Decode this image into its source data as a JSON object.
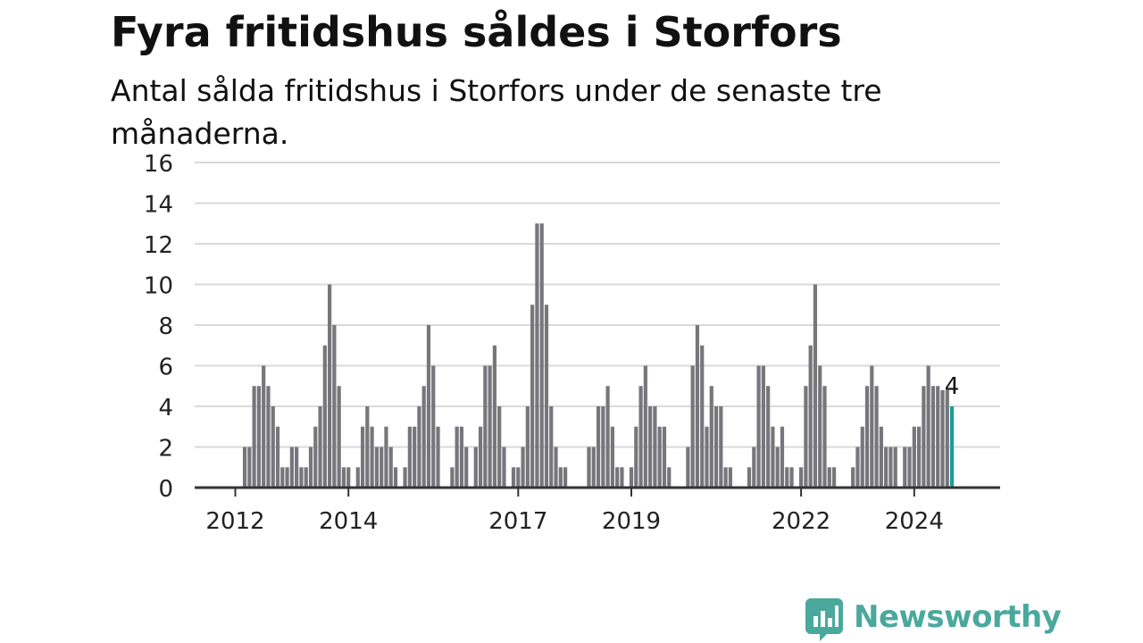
{
  "title": "Fyra fritidshus såldes i Storfors",
  "subtitle": "Antal sålda fritidshus i Storfors under de senaste tre månaderna.",
  "brand": {
    "name": "Newsworthy",
    "color": "#4ba89d",
    "icon": "newsworthy-logo-icon"
  },
  "chart_data": {
    "type": "bar",
    "grid": true,
    "ylim": [
      0,
      16
    ],
    "yticks": [
      0,
      2,
      4,
      6,
      8,
      10,
      12,
      14,
      16
    ],
    "xticks": [
      {
        "label": "2012",
        "index": 0
      },
      {
        "label": "2014",
        "index": 24
      },
      {
        "label": "2017",
        "index": 60
      },
      {
        "label": "2019",
        "index": 84
      },
      {
        "label": "2022",
        "index": 120
      },
      {
        "label": "2024",
        "index": 144
      }
    ],
    "bar_color": "#76767c",
    "highlight_color": "#1b9d9a",
    "highlight_label": "4",
    "values": [
      null,
      null,
      2,
      2,
      5,
      5,
      6,
      5,
      4,
      3,
      1,
      1,
      2,
      2,
      1,
      1,
      2,
      3,
      4,
      7,
      10,
      8,
      5,
      1,
      1,
      null,
      1,
      3,
      4,
      3,
      2,
      2,
      3,
      2,
      1,
      null,
      1,
      3,
      3,
      4,
      5,
      8,
      6,
      3,
      null,
      null,
      1,
      3,
      3,
      2,
      null,
      2,
      3,
      6,
      6,
      7,
      4,
      2,
      null,
      1,
      1,
      2,
      4,
      9,
      13,
      13,
      9,
      4,
      2,
      1,
      1,
      null,
      null,
      null,
      null,
      2,
      2,
      4,
      4,
      5,
      3,
      1,
      1,
      null,
      1,
      3,
      5,
      6,
      4,
      4,
      3,
      3,
      1,
      null,
      null,
      null,
      2,
      6,
      8,
      7,
      3,
      5,
      4,
      4,
      1,
      1,
      null,
      null,
      null,
      1,
      2,
      6,
      6,
      5,
      3,
      2,
      3,
      1,
      1,
      null,
      1,
      5,
      7,
      10,
      6,
      5,
      1,
      1,
      null,
      null,
      null,
      1,
      2,
      3,
      5,
      6,
      5,
      3,
      2,
      2,
      2,
      null,
      2,
      2,
      3,
      3,
      5,
      6,
      5,
      5,
      4.8,
      4.8,
      4
    ]
  }
}
